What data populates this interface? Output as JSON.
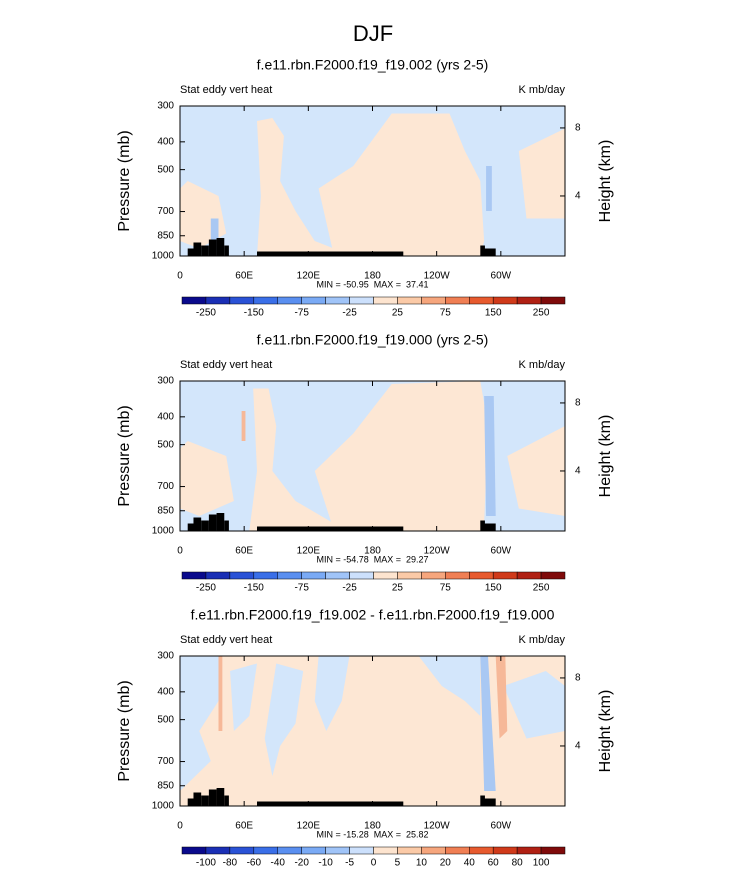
{
  "title": "DJF",
  "chart_data": [
    {
      "type": "contour",
      "title": "f.e11.rbn.F2000.f19_f19.002 (yrs 2-5)",
      "left_label": "Stat eddy vert heat",
      "right_label": "K mb/day",
      "ylabel": "Pressure (mb)",
      "y2label": "Height (km)",
      "y_log": true,
      "ylim": [
        1000,
        300
      ],
      "yticks": [
        300,
        400,
        500,
        700,
        850,
        1000
      ],
      "y2lim": [
        0.47,
        9.29
      ],
      "y2ticks": [
        4,
        8
      ],
      "xlim": [
        0,
        360
      ],
      "xticks": [
        0,
        {
          "value": 60,
          "label": "60E"
        },
        {
          "value": 120,
          "label": "120E"
        },
        180,
        {
          "value": 240,
          "label": "120W"
        },
        {
          "value": 300,
          "label": "60W"
        }
      ],
      "stats": "MIN = -50.95  MAX =  37.41",
      "colors": [
        "#0a0a8c",
        "#1a2fb5",
        "#2a52d6",
        "#3a6fe8",
        "#5a8ff0",
        "#7aaaf5",
        "#a0c4f8",
        "#cce0fc",
        "#fde4cf",
        "#fbcaa7",
        "#f6a67d",
        "#f07f54",
        "#e75a2e",
        "#d03a1a",
        "#b02013",
        "#7f0a0a"
      ],
      "colorbar_labels": [
        -250,
        -150,
        -75,
        -25,
        25,
        75,
        150,
        250
      ]
    },
    {
      "type": "contour",
      "title": "f.e11.rbn.F2000.f19_f19.000 (yrs 2-5)",
      "left_label": "Stat eddy vert heat",
      "right_label": "K mb/day",
      "ylabel": "Pressure (mb)",
      "y2label": "Height (km)",
      "y_log": true,
      "ylim": [
        1000,
        300
      ],
      "yticks": [
        300,
        400,
        500,
        700,
        850,
        1000
      ],
      "y2lim": [
        0.47,
        9.29
      ],
      "y2ticks": [
        4,
        8
      ],
      "xlim": [
        0,
        360
      ],
      "xticks": [
        0,
        {
          "value": 60,
          "label": "60E"
        },
        {
          "value": 120,
          "label": "120E"
        },
        180,
        {
          "value": 240,
          "label": "120W"
        },
        {
          "value": 300,
          "label": "60W"
        }
      ],
      "stats": "MIN = -54.78  MAX =  29.27",
      "colors": [
        "#0a0a8c",
        "#1a2fb5",
        "#2a52d6",
        "#3a6fe8",
        "#5a8ff0",
        "#7aaaf5",
        "#a0c4f8",
        "#cce0fc",
        "#fde4cf",
        "#fbcaa7",
        "#f6a67d",
        "#f07f54",
        "#e75a2e",
        "#d03a1a",
        "#b02013",
        "#7f0a0a"
      ],
      "colorbar_labels": [
        -250,
        -150,
        -75,
        -25,
        25,
        75,
        150,
        250
      ]
    },
    {
      "type": "contour",
      "title": "f.e11.rbn.F2000.f19_f19.002 - f.e11.rbn.F2000.f19_f19.000",
      "left_label": "Stat eddy vert heat",
      "right_label": "K mb/day",
      "ylabel": "Pressure (mb)",
      "y2label": "Height (km)",
      "y_log": true,
      "ylim": [
        1000,
        300
      ],
      "yticks": [
        300,
        400,
        500,
        700,
        850,
        1000
      ],
      "y2lim": [
        0.47,
        9.29
      ],
      "y2ticks": [
        4,
        8
      ],
      "xlim": [
        0,
        360
      ],
      "xticks": [
        0,
        {
          "value": 60,
          "label": "60E"
        },
        {
          "value": 120,
          "label": "120E"
        },
        180,
        {
          "value": 240,
          "label": "120W"
        },
        {
          "value": 300,
          "label": "60W"
        }
      ],
      "stats": "MIN = -15.28  MAX =  25.82",
      "colors": [
        "#0a0a8c",
        "#1a2fb5",
        "#2a52d6",
        "#3a6fe8",
        "#5a8ff0",
        "#7aaaf5",
        "#a0c4f8",
        "#cce0fc",
        "#fde4cf",
        "#fbcaa7",
        "#f6a67d",
        "#f07f54",
        "#e75a2e",
        "#d03a1a",
        "#b02013",
        "#7f0a0a"
      ],
      "colorbar_labels": [
        -100,
        -80,
        -60,
        -40,
        -20,
        -10,
        -5,
        0,
        5,
        10,
        20,
        40,
        60,
        80,
        100
      ]
    }
  ]
}
